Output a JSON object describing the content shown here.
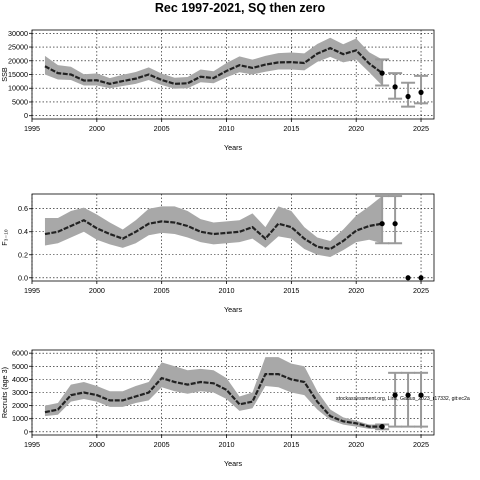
{
  "figure": {
    "title": "Rec 1997-2021, SQ then zero",
    "annotation": "stockassessment.org, Liris, Gadus_2023_r17332, git:ec2a"
  },
  "chart_data": [
    {
      "type": "line",
      "xlabel": "Years",
      "ylabel": "SSB",
      "xlim": [
        1995,
        2026
      ],
      "ylim": [
        0,
        30000
      ],
      "x_ticks": [
        1995,
        2000,
        2005,
        2010,
        2015,
        2020,
        2025
      ],
      "y_ticks": [
        0,
        5000,
        10000,
        15000,
        20000,
        25000,
        30000
      ],
      "grid": true,
      "series": [
        {
          "kind": "estimate",
          "x": [
            1996,
            1997,
            1998,
            1999,
            2000,
            2001,
            2002,
            2003,
            2004,
            2005,
            2006,
            2007,
            2008,
            2009,
            2010,
            2011,
            2012,
            2013,
            2014,
            2015,
            2016,
            2017,
            2018,
            2019,
            2020,
            2021,
            2022
          ],
          "values": [
            18000,
            15500,
            15000,
            12800,
            12900,
            11600,
            12600,
            13500,
            15000,
            13000,
            11600,
            11800,
            14200,
            13700,
            16300,
            18400,
            17400,
            18600,
            19400,
            19500,
            19200,
            22600,
            24600,
            22400,
            23800,
            19000,
            15500
          ],
          "lower": [
            15000,
            13200,
            13000,
            11000,
            11000,
            10000,
            10800,
            11600,
            13000,
            11200,
            9800,
            10000,
            12200,
            11800,
            14000,
            15800,
            15000,
            16000,
            16800,
            16800,
            16500,
            19600,
            21400,
            19400,
            20400,
            15800,
            11000
          ],
          "upper": [
            21800,
            18400,
            17800,
            15100,
            15400,
            13700,
            14900,
            15900,
            17600,
            15300,
            13800,
            14100,
            16800,
            16200,
            19200,
            21600,
            20400,
            21800,
            22800,
            23000,
            22700,
            26100,
            28400,
            26000,
            28100,
            23100,
            20500
          ]
        },
        {
          "kind": "forecast",
          "x": [
            2023,
            2024,
            2025
          ],
          "median": [
            10500,
            7000,
            8500
          ],
          "lower": [
            6200,
            3300,
            4500
          ],
          "upper": [
            15500,
            12000,
            14500
          ]
        }
      ]
    },
    {
      "type": "line",
      "xlabel": "Years",
      "ylabel": "F₃₋₁₀",
      "xlim": [
        1995,
        2026
      ],
      "ylim": [
        0,
        0.7
      ],
      "x_ticks": [
        1995,
        2000,
        2005,
        2010,
        2015,
        2020,
        2025
      ],
      "y_ticks": [
        0.0,
        0.2,
        0.4,
        0.6
      ],
      "grid": true,
      "series": [
        {
          "kind": "estimate",
          "x": [
            1996,
            1997,
            1998,
            1999,
            2000,
            2001,
            2002,
            2003,
            2004,
            2005,
            2006,
            2007,
            2008,
            2009,
            2010,
            2011,
            2012,
            2013,
            2014,
            2015,
            2016,
            2017,
            2018,
            2019,
            2020,
            2021,
            2022
          ],
          "values": [
            0.38,
            0.4,
            0.45,
            0.5,
            0.43,
            0.38,
            0.34,
            0.4,
            0.47,
            0.49,
            0.48,
            0.45,
            0.4,
            0.38,
            0.39,
            0.4,
            0.44,
            0.34,
            0.47,
            0.44,
            0.34,
            0.27,
            0.25,
            0.32,
            0.41,
            0.45,
            0.47
          ],
          "lower": [
            0.28,
            0.3,
            0.35,
            0.4,
            0.33,
            0.29,
            0.26,
            0.3,
            0.37,
            0.39,
            0.38,
            0.35,
            0.31,
            0.29,
            0.3,
            0.31,
            0.34,
            0.26,
            0.36,
            0.34,
            0.25,
            0.2,
            0.18,
            0.24,
            0.31,
            0.33,
            0.3
          ],
          "upper": [
            0.52,
            0.52,
            0.58,
            0.61,
            0.55,
            0.48,
            0.42,
            0.5,
            0.6,
            0.62,
            0.62,
            0.58,
            0.51,
            0.48,
            0.49,
            0.5,
            0.56,
            0.44,
            0.62,
            0.58,
            0.44,
            0.35,
            0.32,
            0.42,
            0.54,
            0.62,
            0.71
          ]
        },
        {
          "kind": "forecast",
          "x": [
            2023,
            2024,
            2025
          ],
          "median": [
            0.47,
            0.0,
            0.0
          ],
          "lower": [
            0.3,
            0.0,
            0.0
          ],
          "upper": [
            0.71,
            0.0,
            0.0
          ]
        }
      ]
    },
    {
      "type": "line",
      "xlabel": "Years",
      "ylabel": "Recruits (age 3)",
      "xlim": [
        1995,
        2026
      ],
      "ylim": [
        0,
        6000
      ],
      "x_ticks": [
        1995,
        2000,
        2005,
        2010,
        2015,
        2020,
        2025
      ],
      "y_ticks": [
        0,
        1000,
        2000,
        3000,
        4000,
        5000,
        6000
      ],
      "grid": true,
      "series": [
        {
          "kind": "estimate",
          "x": [
            1996,
            1997,
            1998,
            1999,
            2000,
            2001,
            2002,
            2003,
            2004,
            2005,
            2006,
            2007,
            2008,
            2009,
            2010,
            2011,
            2012,
            2013,
            2014,
            2015,
            2016,
            2017,
            2018,
            2019,
            2020,
            2021,
            2022
          ],
          "values": [
            1500,
            1700,
            2800,
            3000,
            2800,
            2400,
            2400,
            2700,
            3000,
            4100,
            3800,
            3600,
            3800,
            3700,
            3200,
            2100,
            2300,
            4400,
            4400,
            4000,
            3800,
            2300,
            1200,
            800,
            650,
            400,
            400
          ],
          "lower": [
            1200,
            1300,
            2300,
            2500,
            2300,
            1900,
            1900,
            2200,
            2400,
            3400,
            3100,
            2900,
            3100,
            3000,
            2500,
            1600,
            1800,
            3500,
            3400,
            3000,
            2800,
            1700,
            900,
            550,
            400,
            230,
            200
          ],
          "upper": [
            2000,
            2200,
            3600,
            3800,
            3500,
            3100,
            3100,
            3500,
            3800,
            5300,
            5000,
            4700,
            4800,
            4700,
            4100,
            2700,
            3000,
            5700,
            5700,
            5200,
            5000,
            3100,
            1700,
            1100,
            850,
            560,
            560
          ]
        },
        {
          "kind": "forecast",
          "x": [
            2023,
            2024,
            2025
          ],
          "median": [
            2800,
            2800,
            2800
          ],
          "lower": [
            400,
            400,
            400
          ],
          "upper": [
            4500,
            4500,
            4500
          ]
        }
      ]
    }
  ]
}
